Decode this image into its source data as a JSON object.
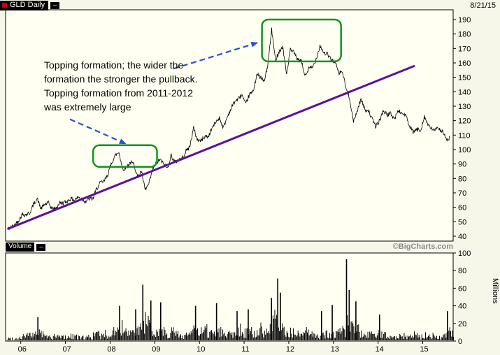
{
  "header": {
    "symbol": "GLD Daily",
    "date": "8/21/15"
  },
  "icons": {
    "legend_dash": "–"
  },
  "panels": {
    "volume_label": "Volume",
    "watermark": "©BigCharts.com",
    "volume_unit": "Millions"
  },
  "annotation": {
    "lines": [
      "Topping formation; the wider the",
      "formation the stronger the pullback.",
      "Topping formation from 2011-2012",
      "was extremely large"
    ]
  },
  "colors": {
    "price_line": "#000000",
    "trendline": "#5b0f9b",
    "highlight_box": "#10951c",
    "arrow": "#2a52c8",
    "volume_bar": "#000000",
    "watermark": "#8a8a8a",
    "panel_bg": "#fffff2",
    "page_bg": "#f6f6e9"
  },
  "chart_data": {
    "type": "line",
    "title": "GLD Daily price with volume, 2006-2015",
    "x_axis": {
      "range": [
        2005.66,
        2015.68
      ],
      "tick_values": [
        2006,
        2007,
        2008,
        2009,
        2010,
        2011,
        2012,
        2013,
        2014,
        2015
      ],
      "tick_labels": [
        "06",
        "07",
        "08",
        "09",
        "10",
        "11",
        "12",
        "13",
        "14",
        "15"
      ]
    },
    "price_axis": {
      "min": 40,
      "max": 190,
      "step": 10,
      "ticks": [
        40,
        50,
        60,
        70,
        80,
        90,
        100,
        110,
        120,
        130,
        140,
        150,
        160,
        170,
        180,
        190
      ]
    },
    "volume_axis": {
      "min": 0,
      "max": 100,
      "step": 20,
      "unit": "Millions",
      "ticks": [
        0,
        20,
        40,
        60,
        80,
        100
      ]
    },
    "price_monthly": {
      "t_start": 2005.7,
      "t_step": 0.0833333,
      "values": [
        45,
        46,
        48,
        51,
        55,
        55,
        56,
        62,
        66,
        59,
        62,
        63,
        59,
        59,
        63,
        63,
        64,
        66,
        65,
        67,
        66,
        64,
        66,
        66,
        73,
        77,
        78,
        83,
        91,
        96,
        98,
        86,
        88,
        91,
        90,
        81,
        85,
        72,
        76,
        86,
        91,
        93,
        90,
        87,
        96,
        91,
        93,
        94,
        99,
        102,
        115,
        107,
        106,
        109,
        109,
        115,
        119,
        122,
        115,
        122,
        128,
        133,
        135,
        138,
        131,
        138,
        140,
        152,
        150,
        147,
        159,
        183,
        162,
        168,
        171,
        152,
        169,
        167,
        162,
        161,
        151,
        156,
        157,
        163,
        172,
        167,
        166,
        162,
        161,
        153,
        154,
        142,
        135,
        119,
        127,
        135,
        128,
        127,
        121,
        116,
        120,
        127,
        124,
        125,
        121,
        127,
        125,
        124,
        116,
        112,
        114,
        113,
        123,
        117,
        114,
        114,
        114,
        113,
        106,
        109
      ]
    },
    "volume_monthly": {
      "t_start": 2005.7,
      "t_step": 0.0833333,
      "values": [
        3,
        3,
        3,
        4,
        6,
        7,
        6,
        9,
        11,
        8,
        5,
        5,
        5,
        5,
        5,
        5,
        5,
        6,
        6,
        4,
        4,
        5,
        5,
        7,
        8,
        6,
        8,
        6,
        13,
        11,
        15,
        10,
        9,
        8,
        10,
        14,
        19,
        21,
        15,
        12,
        11,
        14,
        12,
        9,
        11,
        8,
        7,
        6,
        10,
        9,
        13,
        10,
        10,
        12,
        9,
        11,
        14,
        12,
        8,
        9,
        10,
        12,
        14,
        10,
        11,
        10,
        8,
        10,
        14,
        10,
        13,
        23,
        20,
        14,
        12,
        11,
        10,
        8,
        8,
        7,
        10,
        8,
        6,
        6,
        10,
        8,
        7,
        8,
        9,
        11,
        12,
        24,
        15,
        17,
        12,
        10,
        8,
        7,
        6,
        8,
        8,
        8,
        8,
        6,
        6,
        6,
        6,
        5,
        8,
        8,
        6,
        5,
        8,
        6,
        6,
        5,
        5,
        6,
        10,
        9
      ]
    },
    "volume_spikes": [
      [
        2006.37,
        27
      ],
      [
        2008.2,
        40
      ],
      [
        2008.56,
        36
      ],
      [
        2008.72,
        64
      ],
      [
        2008.9,
        46
      ],
      [
        2009.12,
        44
      ],
      [
        2009.9,
        40
      ],
      [
        2010.37,
        43
      ],
      [
        2010.83,
        34
      ],
      [
        2011.08,
        36
      ],
      [
        2011.6,
        49
      ],
      [
        2011.74,
        71
      ],
      [
        2011.8,
        55
      ],
      [
        2012.72,
        34
      ],
      [
        2012.96,
        41
      ],
      [
        2013.28,
        93
      ],
      [
        2013.34,
        58
      ],
      [
        2013.49,
        45
      ],
      [
        2014.02,
        30
      ],
      [
        2015.54,
        34
      ]
    ],
    "trendline": {
      "t1": 2005.7,
      "p1": 45,
      "t2": 2014.82,
      "p2": 158
    },
    "highlight_boxes": [
      {
        "name": "topping-2008",
        "t1": 2007.62,
        "t2": 2009.05,
        "p1": 88,
        "p2": 103
      },
      {
        "name": "topping-2011-2012",
        "t1": 2011.4,
        "t2": 2013.17,
        "p1": 161,
        "p2": 190
      }
    ],
    "arrows": [
      {
        "name": "arrow-to-2011-box",
        "t1": 2009.42,
        "p1": 156,
        "t2": 2011.3,
        "p2": 174
      },
      {
        "name": "arrow-to-2008-box",
        "t1": 2007.1,
        "p1": 121,
        "t2": 2008.35,
        "p2": 104
      }
    ]
  }
}
